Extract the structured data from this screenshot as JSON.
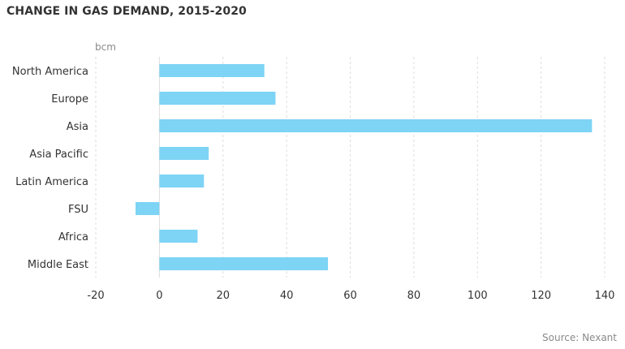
{
  "title": "CHANGE IN GAS DEMAND, 2015-2020",
  "unit_label": "bcm",
  "source": "Source: Nexant",
  "colors": {
    "bar": "#7dd4f5",
    "grid": "#dddddd",
    "axis": "#cccccc",
    "text": "#333333",
    "muted": "#8a8a8a"
  },
  "chart_data": {
    "type": "bar",
    "orientation": "horizontal",
    "title": "CHANGE IN GAS DEMAND, 2015-2020",
    "xlabel": "bcm",
    "ylabel": "",
    "categories": [
      "North America",
      "Europe",
      "Asia",
      "Asia Pacific",
      "Latin America",
      "FSU",
      "Africa",
      "Middle East"
    ],
    "values": [
      33,
      36.5,
      136,
      15.5,
      14,
      -7.5,
      12,
      53
    ],
    "xlim": [
      -20,
      140
    ],
    "xticks": [
      -20,
      0,
      20,
      40,
      60,
      80,
      100,
      120,
      140
    ],
    "grid": "vertical dashed",
    "legend": "none"
  }
}
